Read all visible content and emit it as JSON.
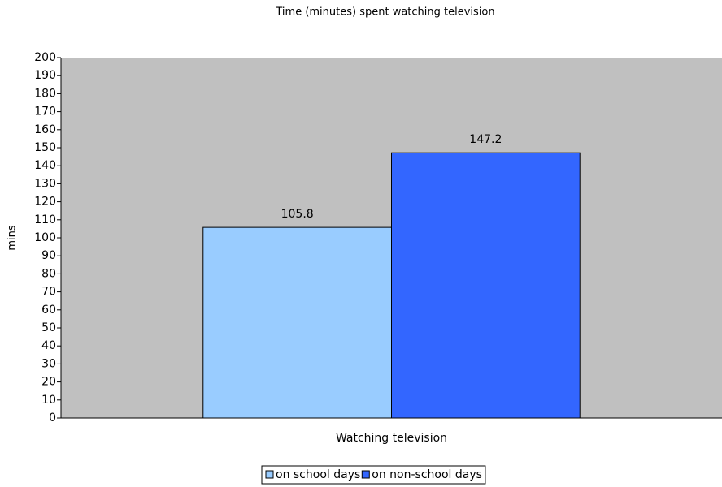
{
  "chart_data": {
    "type": "bar",
    "title": "Time (minutes) spent watching television",
    "y_label": "mins",
    "x_label": "Watching television",
    "categories": [
      "Watching television"
    ],
    "series": [
      {
        "name": "on school days",
        "color": "#99ccff",
        "values": [
          105.8
        ]
      },
      {
        "name": "on non-school days",
        "color": "#3366ff",
        "values": [
          147.2
        ]
      }
    ],
    "ylim": [
      0,
      200
    ],
    "yticks": [
      0,
      10,
      20,
      30,
      40,
      50,
      60,
      70,
      80,
      90,
      100,
      110,
      120,
      130,
      140,
      150,
      160,
      170,
      180,
      190,
      200
    ],
    "grid": false,
    "plot_background": "#c0c0c0",
    "legend": "bottom"
  }
}
